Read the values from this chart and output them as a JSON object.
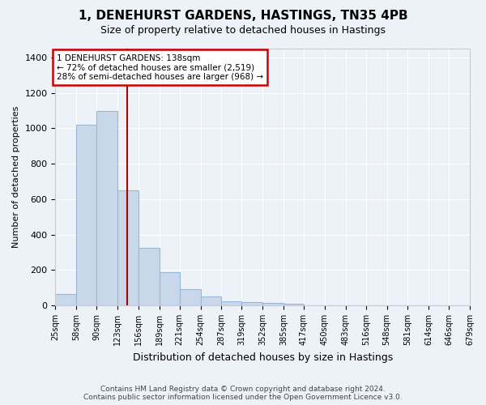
{
  "title": "1, DENEHURST GARDENS, HASTINGS, TN35 4PB",
  "subtitle": "Size of property relative to detached houses in Hastings",
  "xlabel": "Distribution of detached houses by size in Hastings",
  "ylabel": "Number of detached properties",
  "bar_color": "#c8d8ea",
  "bar_edge_color": "#9ab8d5",
  "background_color": "#edf1f8",
  "grid_color": "#ffffff",
  "vline_x": 138,
  "vline_color": "#aa0000",
  "annotation_text": "1 DENEHURST GARDENS: 138sqm\n← 72% of detached houses are smaller (2,519)\n28% of semi-detached houses are larger (968) →",
  "annotation_box_facecolor": "#ffffff",
  "annotation_box_edgecolor": "#cc0000",
  "bin_edges": [
    25,
    58,
    90,
    123,
    156,
    189,
    221,
    254,
    287,
    319,
    352,
    385,
    417,
    450,
    483,
    516,
    548,
    581,
    614,
    646,
    679
  ],
  "bar_heights": [
    65,
    1020,
    1100,
    650,
    325,
    190,
    90,
    50,
    25,
    20,
    15,
    10,
    0,
    0,
    0,
    0,
    0,
    0,
    0,
    0
  ],
  "ylim": [
    0,
    1450
  ],
  "yticks": [
    0,
    200,
    400,
    600,
    800,
    1000,
    1200,
    1400
  ],
  "footer_text": "Contains HM Land Registry data © Crown copyright and database right 2024.\nContains public sector information licensed under the Open Government Licence v3.0.",
  "figsize": [
    6.0,
    5.0
  ],
  "dpi": 100
}
